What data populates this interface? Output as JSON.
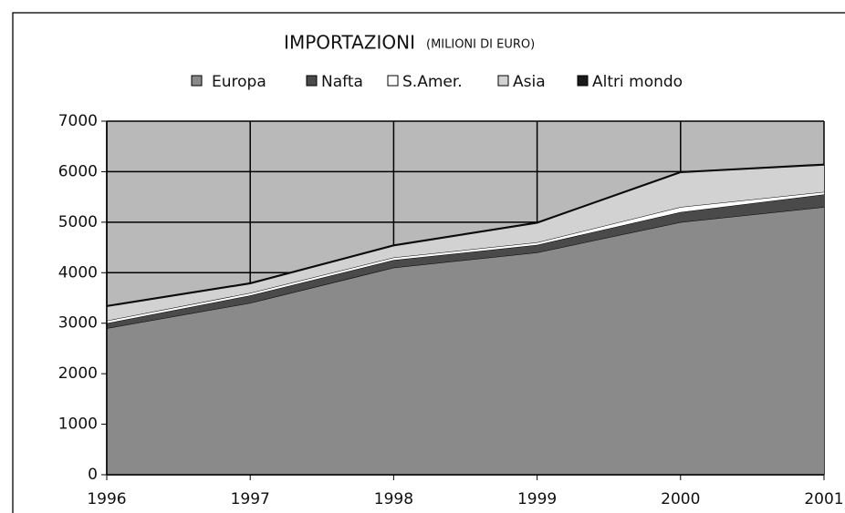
{
  "chart_data": {
    "type": "area",
    "stacked": true,
    "title": "IMPORTAZIONI",
    "subtitle": "(MILIONI DI EURO)",
    "categories": [
      "1996",
      "1997",
      "1998",
      "1999",
      "2000",
      "2001"
    ],
    "series": [
      {
        "name": "Europa",
        "color": "#8a8a8a",
        "values": [
          2900,
          3400,
          4100,
          4400,
          5000,
          5300
        ]
      },
      {
        "name": "Nafta",
        "color": "#4a4a4a",
        "values": [
          100,
          150,
          150,
          150,
          200,
          250
        ]
      },
      {
        "name": "S.Amer.",
        "color": "#ffffff",
        "values": [
          50,
          50,
          50,
          50,
          100,
          50
        ]
      },
      {
        "name": "Asia",
        "color": "#d2d2d2",
        "values": [
          280,
          180,
          230,
          380,
          680,
          530
        ]
      },
      {
        "name": "Altri mondo",
        "color": "#1a1a1a",
        "values": [
          20,
          20,
          20,
          20,
          20,
          20
        ]
      }
    ],
    "ylim": [
      0,
      7000
    ],
    "yticks": [
      0,
      1000,
      2000,
      3000,
      4000,
      5000,
      6000,
      7000
    ],
    "grid": true,
    "plot_background": "#b9b9b9"
  }
}
